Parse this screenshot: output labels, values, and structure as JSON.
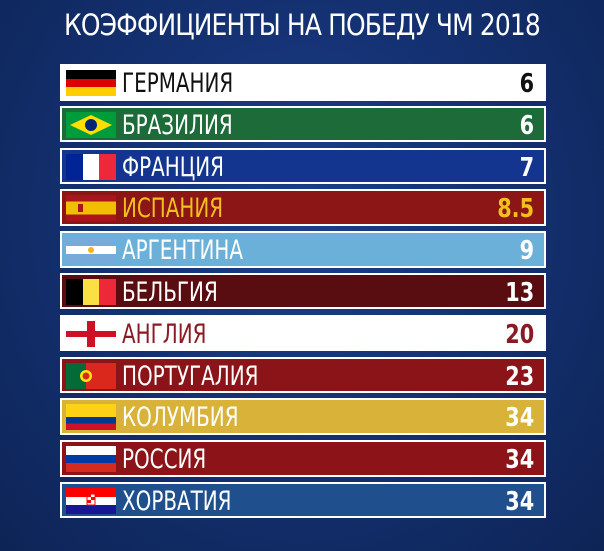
{
  "title": "КОЭФФИЦИЕНТЫ НА ПОБЕДУ ЧМ 2018",
  "rows": [
    {
      "country": "ГЕРМАНИЯ",
      "odds": "6",
      "bg": "#ffffff",
      "color": "#111111",
      "flag": "germany-flag-icon"
    },
    {
      "country": "БРАЗИЛИЯ",
      "odds": "6",
      "bg": "#1e6b3a",
      "color": "#ffffff",
      "flag": "brazil-flag-icon"
    },
    {
      "country": "ФРАНЦИЯ",
      "odds": "7",
      "bg": "#14358f",
      "color": "#ffffff",
      "flag": "france-flag-icon"
    },
    {
      "country": "ИСПАНИЯ",
      "odds": "8.5",
      "bg": "#8c1515",
      "color": "#f2c01e",
      "flag": "spain-flag-icon"
    },
    {
      "country": "АРГЕНТИНА",
      "odds": "9",
      "bg": "#6bb0d8",
      "color": "#ffffff",
      "flag": "argentina-flag-icon"
    },
    {
      "country": "БЕЛЬГИЯ",
      "odds": "13",
      "bg": "#5a0d10",
      "color": "#ffffff",
      "flag": "belgium-flag-icon"
    },
    {
      "country": "АНГЛИЯ",
      "odds": "20",
      "bg": "#ffffff",
      "color": "#8a1a24",
      "flag": "england-flag-icon"
    },
    {
      "country": "ПОРТУГАЛИЯ",
      "odds": "23",
      "bg": "#8a1418",
      "color": "#ffffff",
      "flag": "portugal-flag-icon"
    },
    {
      "country": "КОЛУМБИЯ",
      "odds": "34",
      "bg": "#d9b23a",
      "color": "#ffffff",
      "flag": "colombia-flag-icon"
    },
    {
      "country": "РОССИЯ",
      "odds": "34",
      "bg": "#8c1418",
      "color": "#ffffff",
      "flag": "russia-flag-icon"
    },
    {
      "country": "ХОРВАТИЯ",
      "odds": "34",
      "bg": "#1f4f8c",
      "color": "#ffffff",
      "flag": "croatia-flag-icon"
    }
  ]
}
